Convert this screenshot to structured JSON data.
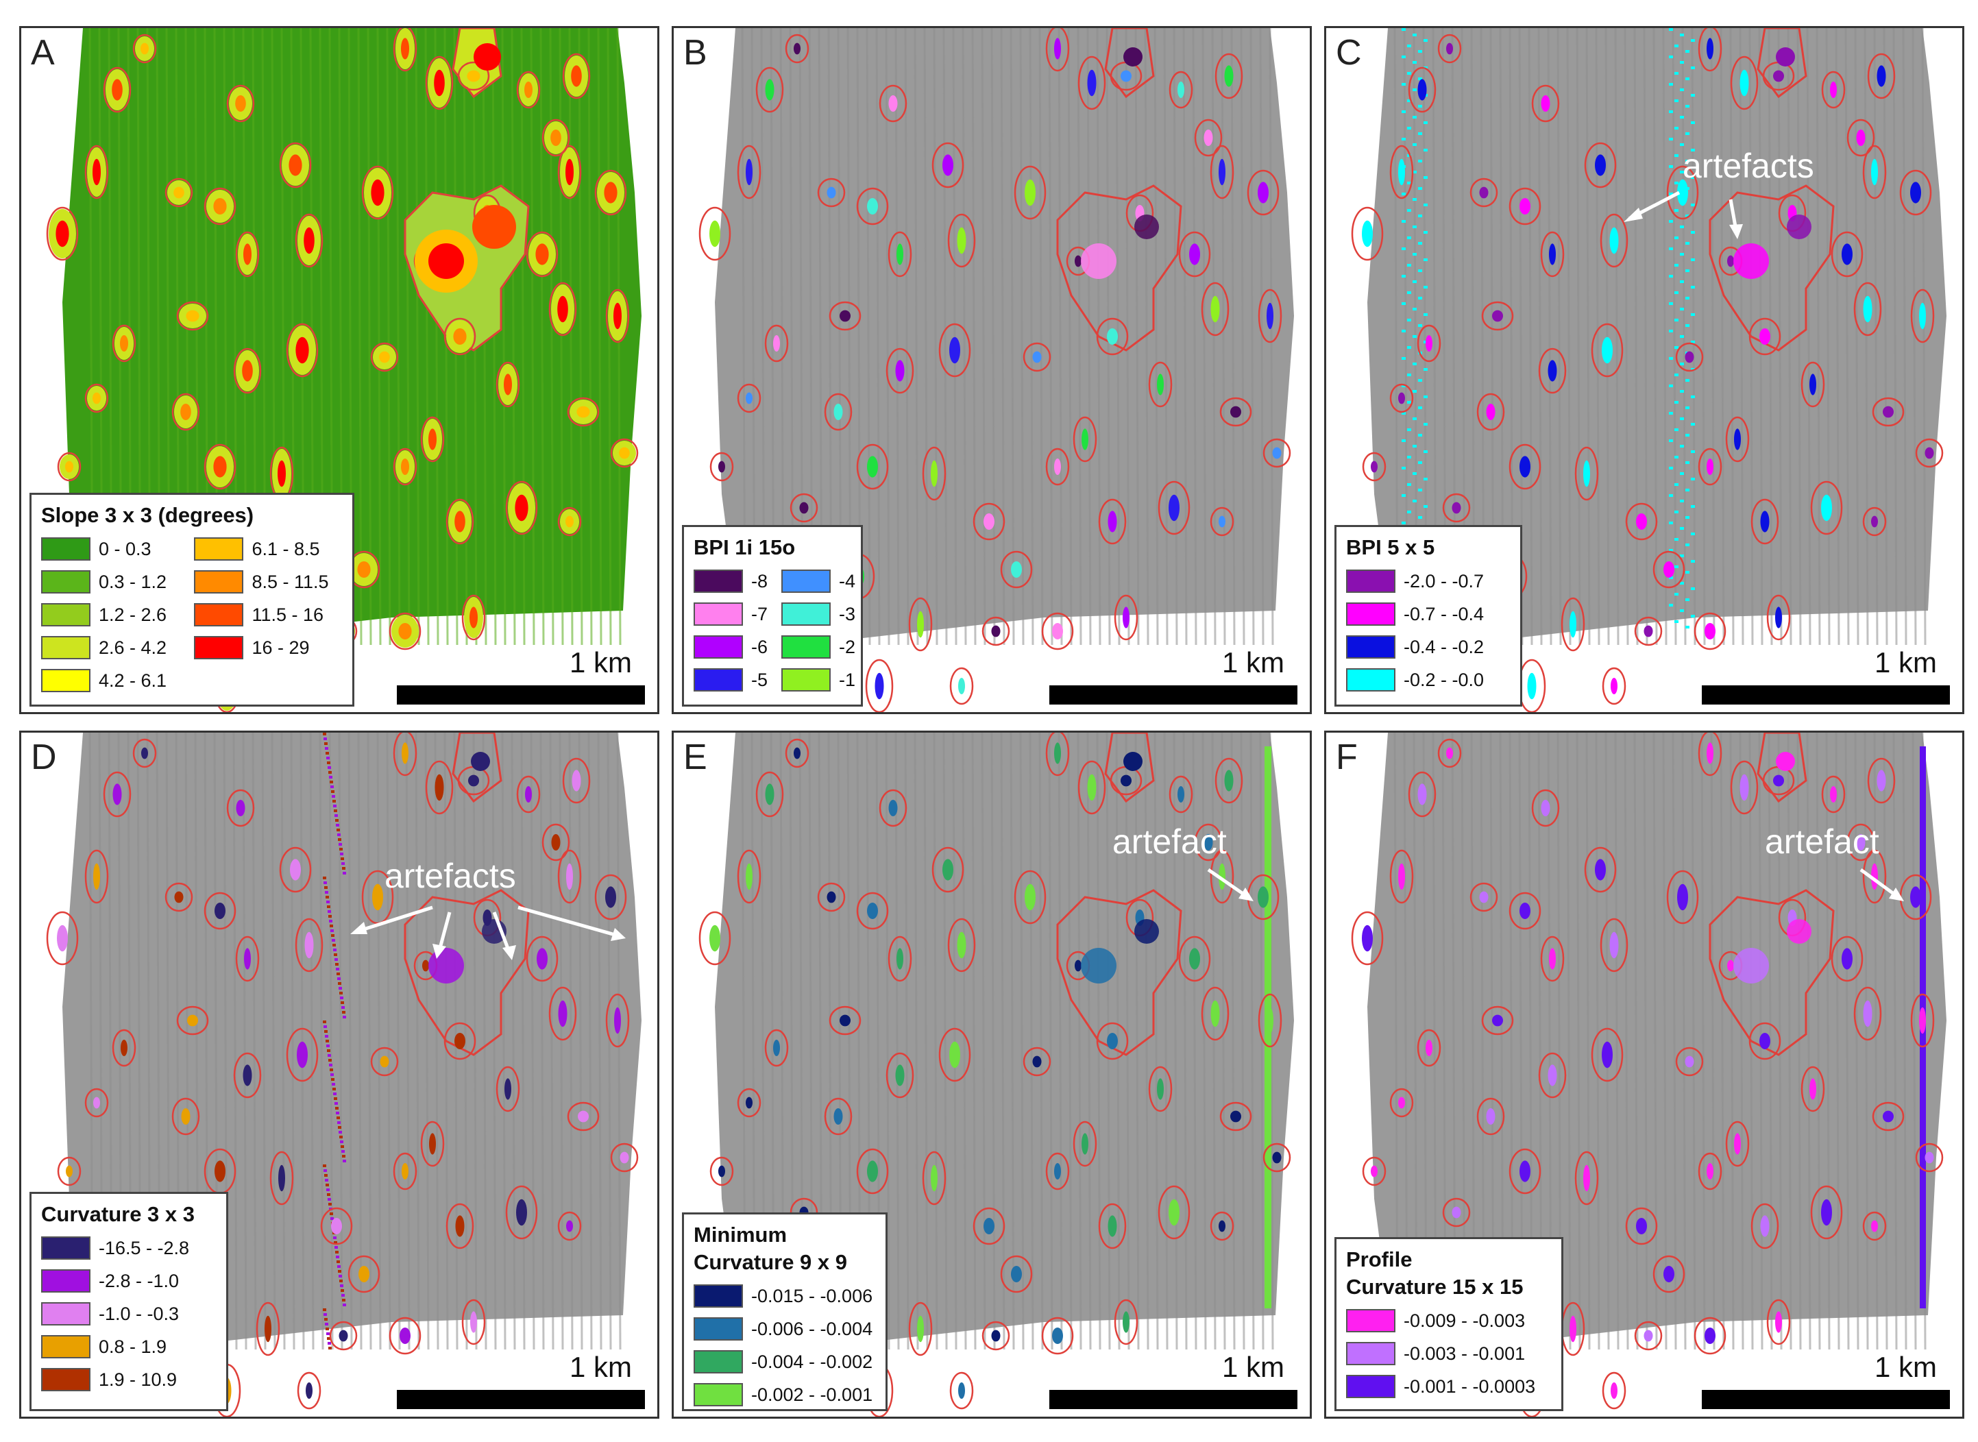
{
  "panels": [
    {
      "id": "A",
      "letter": "A",
      "scale": "1 km",
      "legend": {
        "title": "Slope 3 x 3 (degrees)",
        "cols": 2,
        "items": [
          {
            "label": "0 - 0.3",
            "color": "#2f9a16"
          },
          {
            "label": "0.3 - 1.2",
            "color": "#5bb51a"
          },
          {
            "label": "1.2 - 2.6",
            "color": "#93cc1d"
          },
          {
            "label": "2.6 - 4.2",
            "color": "#cde41f"
          },
          {
            "label": "4.2 - 6.1",
            "color": "#ffff00"
          },
          {
            "label": "6.1 - 8.5",
            "color": "#ffc000"
          },
          {
            "label": "8.5 - 11.5",
            "color": "#ff8a00"
          },
          {
            "label": "11.5 - 16",
            "color": "#ff4a00"
          },
          {
            "label": "16 - 29",
            "color": "#ff0000"
          }
        ]
      }
    },
    {
      "id": "B",
      "letter": "B",
      "scale": "1 km",
      "legend": {
        "title": "BPI 1i 15o",
        "cols": 2,
        "items": [
          {
            "label": "-8",
            "color": "#4b0a5e"
          },
          {
            "label": "-7",
            "color": "#ff80ee"
          },
          {
            "label": "-6",
            "color": "#b000ff"
          },
          {
            "label": "-5",
            "color": "#2a1cf0"
          },
          {
            "label": "-4",
            "color": "#4090ff"
          },
          {
            "label": "-3",
            "color": "#40f0d8"
          },
          {
            "label": "-2",
            "color": "#20e040"
          },
          {
            "label": "-1",
            "color": "#90f020"
          }
        ]
      }
    },
    {
      "id": "C",
      "letter": "C",
      "scale": "1 km",
      "annotation": "artefacts",
      "legend": {
        "title": "BPI 5 x 5",
        "cols": 1,
        "items": [
          {
            "label": "-2.0 - -0.7",
            "color": "#8a10b0"
          },
          {
            "label": "-0.7 - -0.4",
            "color": "#ff00ff"
          },
          {
            "label": "-0.4 - -0.2",
            "color": "#0a10e0"
          },
          {
            "label": "-0.2 - -0.0",
            "color": "#00ffff"
          }
        ]
      }
    },
    {
      "id": "D",
      "letter": "D",
      "scale": "1 km",
      "annotation": "artefacts",
      "legend": {
        "title": "Curvature 3 x 3",
        "cols": 1,
        "items": [
          {
            "label": "-16.5 - -2.8",
            "color": "#2a2070"
          },
          {
            "label": "-2.8 - -1.0",
            "color": "#a010e0"
          },
          {
            "label": "-1.0 - -0.3",
            "color": "#e080f0"
          },
          {
            "label": "0.8 - 1.9",
            "color": "#e8a000"
          },
          {
            "label": "1.9 - 10.9",
            "color": "#b03000"
          }
        ]
      }
    },
    {
      "id": "E",
      "letter": "E",
      "scale": "1 km",
      "annotation": "artefact",
      "legend": {
        "title": "Minimum",
        "title2": "Curvature 9 x 9",
        "cols": 1,
        "items": [
          {
            "label": "-0.015 - -0.006",
            "color": "#0a1a70"
          },
          {
            "label": "-0.006 - -0.004",
            "color": "#2070a8"
          },
          {
            "label": "-0.004 - -0.002",
            "color": "#30a860"
          },
          {
            "label": "-0.002 - -0.001",
            "color": "#70e040"
          }
        ]
      }
    },
    {
      "id": "F",
      "letter": "F",
      "scale": "1 km",
      "annotation": "artefact",
      "legend": {
        "title": "Profile",
        "title2": "Curvature 15 x 15",
        "cols": 1,
        "items": [
          {
            "label": "-0.009 - -0.003",
            "color": "#ff20f0"
          },
          {
            "label": "-0.003 - -0.001",
            "color": "#c070ff"
          },
          {
            "label": "-0.001 - -0.0003",
            "color": "#6010f0"
          }
        ]
      }
    }
  ]
}
